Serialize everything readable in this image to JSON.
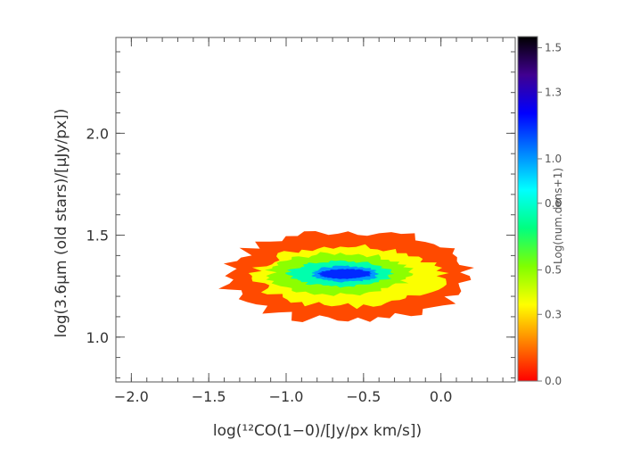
{
  "chart_data": {
    "type": "heatmap",
    "title": "",
    "xlabel": "log(¹²CO(1−0)/[Jy/px km/s])",
    "ylabel": "log(3.6μm (old stars)/[μJy/px])",
    "xlim": [
      -2.1,
      0.48
    ],
    "ylim": [
      0.78,
      2.47
    ],
    "x_ticks": [
      -2.0,
      -1.5,
      -1.0,
      -0.5,
      0.0
    ],
    "x_tick_labels": [
      "−2.0",
      "−1.5",
      "−1.0",
      "−0.5",
      "0.0"
    ],
    "y_ticks": [
      1.0,
      1.5,
      2.0
    ],
    "y_tick_labels": [
      "1.0",
      "1.5",
      "2.0"
    ],
    "grid": false,
    "colorbar": {
      "label": "Log(num.dens+1)",
      "range": [
        0.0,
        1.55
      ],
      "ticks": [
        0.0,
        0.3,
        0.5,
        0.8,
        1.0,
        1.3,
        1.5
      ],
      "tick_labels": [
        "0.0",
        "0.3",
        "0.5",
        "0.8",
        "1.0",
        "1.3",
        "1.5"
      ],
      "colormap": [
        "#ff0000",
        "#ff8000",
        "#ffff00",
        "#80ff00",
        "#00ff80",
        "#00ffff",
        "#0080ff",
        "#0000ff",
        "#400090",
        "#000000"
      ]
    },
    "density_regions": [
      {
        "level": 0.1,
        "x_range": [
          -1.42,
          0.22
        ],
        "y_range": [
          1.08,
          1.54
        ],
        "center": [
          -0.6,
          1.3
        ]
      },
      {
        "level": 0.35,
        "x_range": [
          -1.25,
          0.0
        ],
        "y_range": [
          1.14,
          1.45
        ],
        "center": [
          -0.6,
          1.3
        ]
      },
      {
        "level": 0.5,
        "x_range": [
          -1.12,
          -0.18
        ],
        "y_range": [
          1.19,
          1.4
        ],
        "center": [
          -0.65,
          1.31
        ]
      },
      {
        "level": 0.75,
        "x_range": [
          -0.98,
          -0.3
        ],
        "y_range": [
          1.24,
          1.37
        ],
        "center": [
          -0.65,
          1.31
        ]
      },
      {
        "level": 1.0,
        "x_range": [
          -0.85,
          -0.4
        ],
        "y_range": [
          1.27,
          1.35
        ],
        "center": [
          -0.62,
          1.31
        ]
      },
      {
        "level": 1.15,
        "x_range": [
          -0.8,
          -0.45
        ],
        "y_range": [
          1.285,
          1.335
        ],
        "center": [
          -0.62,
          1.31
        ]
      }
    ]
  }
}
